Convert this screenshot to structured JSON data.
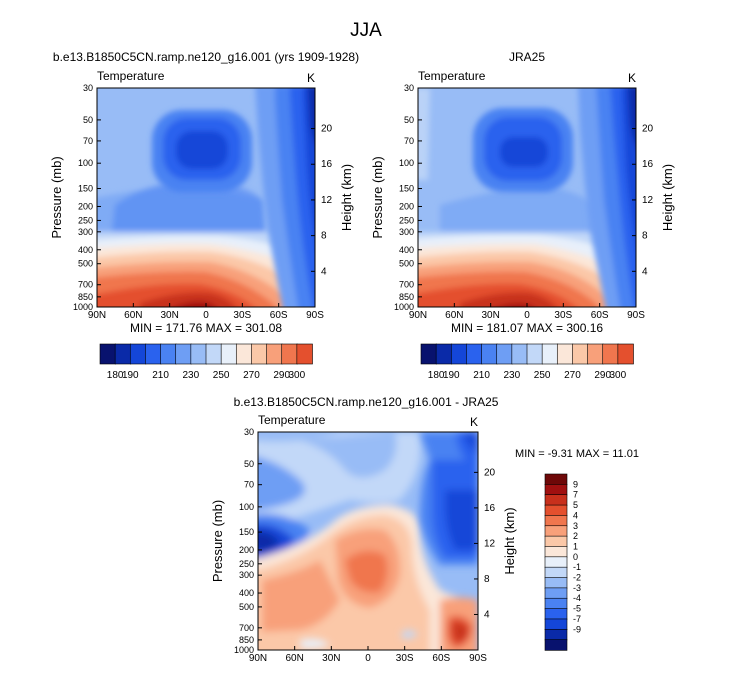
{
  "page_title": "JJA",
  "colors": {
    "cold_to_warm": [
      "#08126e",
      "#0a2aa8",
      "#1446d8",
      "#2a62ee",
      "#4a82f2",
      "#6e9ef4",
      "#98bcf6",
      "#c2d8f8",
      "#e8f0fa",
      "#fbe7d9",
      "#fbc8a8",
      "#f8a07a",
      "#f0764e",
      "#e4502e",
      "#c8301c",
      "#a01010",
      "#6e0808"
    ]
  },
  "chart_data": [
    {
      "type": "heatmap",
      "title": "b.e13.B1850C5CN.ramp.ne120_g16.001 (yrs 1909-1928)",
      "subtitle_left": "Temperature",
      "subtitle_right": "K",
      "xlabel": "",
      "ylabel": "Pressure (mb)",
      "ylabel_right": "Height (km)",
      "x_ticks": [
        "90N",
        "60N",
        "30N",
        "0",
        "30S",
        "60S",
        "90S"
      ],
      "y_ticks": [
        "30",
        "50",
        "70",
        "100",
        "150",
        "200",
        "250",
        "300",
        "400",
        "500",
        "700",
        "850",
        "1000"
      ],
      "y_right_ticks": [
        "20",
        "16",
        "12",
        "8",
        "4"
      ],
      "stats": "MIN = 171.76   MAX = 301.08",
      "levels": [
        180,
        190,
        200,
        210,
        220,
        230,
        240,
        250,
        260,
        270,
        280,
        290,
        300
      ],
      "colorbar_labels": [
        "180",
        "190",
        "210",
        "230",
        "250",
        "270",
        "290",
        "300"
      ]
    },
    {
      "type": "heatmap",
      "title": "JRA25",
      "subtitle_left": "Temperature",
      "subtitle_right": "K",
      "xlabel": "",
      "ylabel": "Pressure (mb)",
      "ylabel_right": "Height (km)",
      "x_ticks": [
        "90N",
        "60N",
        "30N",
        "0",
        "30S",
        "60S",
        "90S"
      ],
      "y_ticks": [
        "30",
        "50",
        "70",
        "100",
        "150",
        "200",
        "250",
        "300",
        "400",
        "500",
        "700",
        "850",
        "1000"
      ],
      "y_right_ticks": [
        "20",
        "16",
        "12",
        "8",
        "4"
      ],
      "stats": "MIN = 181.07   MAX = 300.16",
      "levels": [
        180,
        190,
        200,
        210,
        220,
        230,
        240,
        250,
        260,
        270,
        280,
        290,
        300
      ],
      "colorbar_labels": [
        "180",
        "190",
        "210",
        "230",
        "250",
        "270",
        "290",
        "300"
      ]
    },
    {
      "type": "heatmap",
      "title": "b.e13.B1850C5CN.ramp.ne120_g16.001 - JRA25",
      "subtitle_left": "Temperature",
      "subtitle_right": "K",
      "xlabel": "",
      "ylabel": "Pressure (mb)",
      "ylabel_right": "Height (km)",
      "x_ticks": [
        "90N",
        "60N",
        "30N",
        "0",
        "30S",
        "60S",
        "90S"
      ],
      "y_ticks": [
        "30",
        "50",
        "70",
        "100",
        "150",
        "200",
        "250",
        "300",
        "400",
        "500",
        "700",
        "850",
        "1000"
      ],
      "y_right_ticks": [
        "20",
        "16",
        "12",
        "8",
        "4"
      ],
      "stats": "MIN =  -9.31   MAX =  11.01",
      "levels": [
        -9,
        -7,
        -5,
        -4,
        -3,
        -2,
        -1,
        0,
        1,
        2,
        3,
        4,
        5,
        7,
        9
      ],
      "colorbar_labels": [
        "9",
        "7",
        "5",
        "4",
        "3",
        "2",
        "1",
        "0",
        "-1",
        "-2",
        "-3",
        "-4",
        "-5",
        "-7",
        "-9"
      ]
    }
  ]
}
